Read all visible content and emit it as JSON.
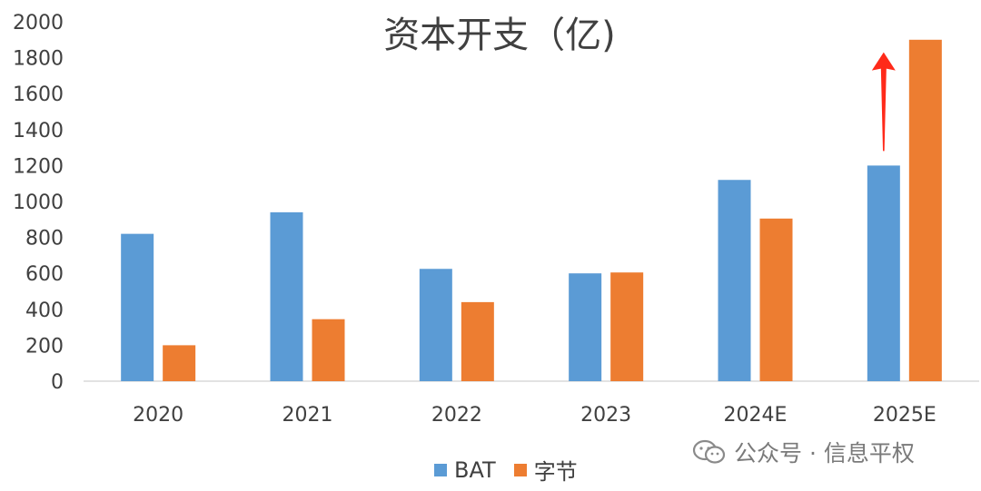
{
  "chart_data": {
    "type": "bar",
    "title": "资本开支（亿)",
    "categories": [
      "2020",
      "2021",
      "2022",
      "2023",
      "2024E",
      "2025E"
    ],
    "series": [
      {
        "name": "BAT",
        "color": "#5B9BD5",
        "values": [
          820,
          940,
          625,
          600,
          1120,
          1200
        ]
      },
      {
        "name": "字节",
        "color": "#ED7D31",
        "values": [
          200,
          345,
          440,
          605,
          905,
          1900
        ]
      }
    ],
    "yticks": [
      "0",
      "200",
      "400",
      "600",
      "800",
      "1000",
      "1200",
      "1400",
      "1600",
      "1800",
      "2000"
    ],
    "ylim": [
      0,
      2000
    ],
    "grid": false,
    "legend": "bottom",
    "annotation": {
      "type": "up-arrow",
      "color": "#ff2a1a",
      "icon": "red-up-arrow-icon"
    }
  },
  "watermark": {
    "text": "公众号 · 信息平权",
    "icon": "wechat-icon"
  }
}
